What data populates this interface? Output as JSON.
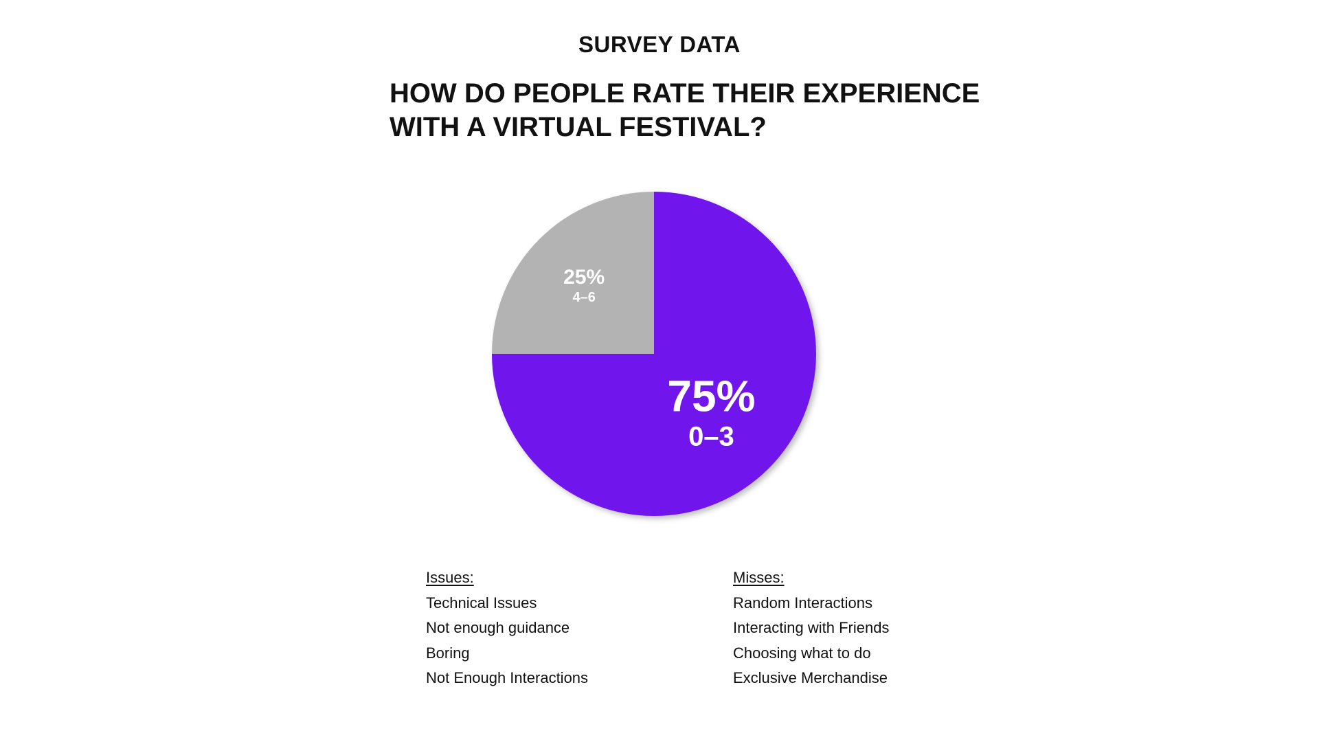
{
  "header": {
    "eyebrow": "SURVEY DATA",
    "question_line1": "HOW DO PEOPLE RATE THEIR EXPERIENCE",
    "question_line2": "WITH A VIRTUAL FESTIVAL?"
  },
  "chart_data": {
    "type": "pie",
    "slices": [
      {
        "label": "0–3",
        "value": 75,
        "value_label": "75%",
        "color": "#6f13ec"
      },
      {
        "label": "4–6",
        "value": 25,
        "value_label": "25%",
        "color": "#b3b3b3"
      }
    ],
    "start": "12 o'clock, clockwise",
    "legend": "none",
    "label_color": "#ffffff"
  },
  "issues": {
    "heading": "Issues:",
    "items": [
      "Technical Issues",
      "Not enough guidance",
      "Boring",
      "Not Enough Interactions"
    ]
  },
  "misses": {
    "heading": "Misses:",
    "items": [
      "Random Interactions",
      "Interacting with Friends",
      "Choosing what to do",
      "Exclusive Merchandise"
    ]
  }
}
